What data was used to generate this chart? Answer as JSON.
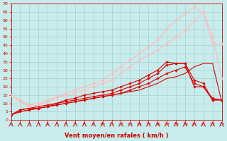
{
  "xlabel": "Vent moyen/en rafales ( km/h )",
  "xlim": [
    0,
    23
  ],
  "ylim": [
    0,
    70
  ],
  "xticks": [
    0,
    1,
    2,
    3,
    4,
    5,
    6,
    7,
    8,
    9,
    10,
    11,
    12,
    13,
    14,
    15,
    16,
    17,
    18,
    19,
    20,
    21,
    22,
    23
  ],
  "yticks": [
    0,
    5,
    10,
    15,
    20,
    25,
    30,
    35,
    40,
    45,
    50,
    55,
    60,
    65,
    70
  ],
  "background_color": "#c8ecec",
  "grid_color": "#a8d0d0",
  "series": [
    {
      "x": [
        0,
        1,
        2,
        3,
        4,
        5,
        6,
        7,
        8,
        9,
        10,
        11,
        12,
        13,
        14,
        15,
        16,
        17,
        18,
        19,
        20,
        21,
        22,
        23
      ],
      "y": [
        3,
        5,
        6,
        7,
        8,
        9,
        10,
        11,
        12,
        13,
        14,
        15,
        16,
        17,
        18,
        20,
        22,
        25,
        26,
        28,
        32,
        34,
        34,
        11
      ],
      "color": "#dd0000",
      "linewidth": 0.8,
      "marker": null
    },
    {
      "x": [
        0,
        1,
        2,
        3,
        4,
        5,
        6,
        7,
        8,
        9,
        10,
        11,
        12,
        13,
        14,
        15,
        16,
        17,
        18,
        19,
        20,
        21,
        22,
        23
      ],
      "y": [
        3,
        5,
        6,
        7,
        8,
        9,
        10,
        11,
        12,
        13,
        14,
        15,
        16,
        18,
        20,
        22,
        25,
        28,
        30,
        32,
        22,
        20,
        12,
        12
      ],
      "color": "#dd0000",
      "linewidth": 0.8,
      "marker": "D",
      "markersize": 1.8
    },
    {
      "x": [
        0,
        1,
        2,
        3,
        4,
        5,
        6,
        7,
        8,
        9,
        10,
        11,
        12,
        13,
        14,
        15,
        16,
        17,
        18,
        19,
        20,
        21,
        22,
        23
      ],
      "y": [
        3,
        6,
        7,
        7,
        8,
        10,
        11,
        12,
        13,
        14,
        15,
        16,
        18,
        20,
        22,
        25,
        28,
        33,
        34,
        34,
        20,
        20,
        13,
        12
      ],
      "color": "#dd0000",
      "linewidth": 0.8,
      "marker": "D",
      "markersize": 1.8
    },
    {
      "x": [
        0,
        1,
        2,
        3,
        4,
        5,
        6,
        7,
        8,
        9,
        10,
        11,
        12,
        13,
        14,
        15,
        16,
        17,
        18,
        19,
        20,
        21,
        22,
        23
      ],
      "y": [
        3,
        6,
        7,
        8,
        9,
        10,
        12,
        13,
        15,
        16,
        17,
        18,
        20,
        22,
        24,
        27,
        30,
        35,
        34,
        34,
        24,
        22,
        12,
        12
      ],
      "color": "#dd0000",
      "linewidth": 0.8,
      "marker": "D",
      "markersize": 1.8
    },
    {
      "x": [
        0,
        1,
        2,
        3,
        4,
        5,
        6,
        7,
        8,
        9,
        10,
        11,
        12,
        13,
        14,
        15,
        16,
        17,
        18,
        19,
        20,
        21,
        22,
        23
      ],
      "y": [
        15,
        11,
        8,
        9,
        11,
        13,
        15,
        16,
        18,
        20,
        22,
        24,
        28,
        32,
        36,
        39,
        42,
        46,
        50,
        54,
        60,
        65,
        50,
        25
      ],
      "color": "#ffbbbb",
      "linewidth": 0.8,
      "marker": "D",
      "markersize": 1.8
    },
    {
      "x": [
        0,
        1,
        2,
        3,
        4,
        5,
        6,
        7,
        8,
        9,
        10,
        11,
        12,
        13,
        14,
        15,
        16,
        17,
        18,
        19,
        20,
        21,
        22,
        23
      ],
      "y": [
        15,
        12,
        9,
        10,
        12,
        14,
        16,
        18,
        20,
        22,
        24,
        28,
        32,
        36,
        40,
        44,
        48,
        55,
        60,
        64,
        68,
        65,
        46,
        46
      ],
      "color": "#ffbbbb",
      "linewidth": 0.8,
      "marker": "D",
      "markersize": 1.8
    }
  ],
  "xlabel_color": "#cc0000",
  "tick_color": "#cc0000",
  "spine_color": "#cc0000"
}
